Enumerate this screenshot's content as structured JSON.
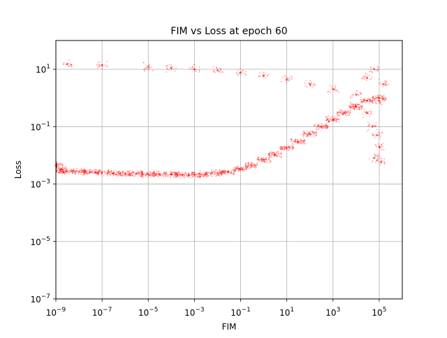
{
  "chart_data": {
    "type": "scatter",
    "title": "FIM vs Loss at epoch 60",
    "xlabel": "FIM",
    "ylabel": "Loss",
    "xscale": "log",
    "yscale": "log",
    "xlim": [
      1e-09,
      1000000.0
    ],
    "ylim": [
      1e-07,
      100
    ],
    "grid": true,
    "marker_color": "#ff0000",
    "x_ticks": [
      {
        "base": "10",
        "exp": "−9",
        "value": 1e-09
      },
      {
        "base": "10",
        "exp": "−7",
        "value": 1e-07
      },
      {
        "base": "10",
        "exp": "−5",
        "value": 1e-05
      },
      {
        "base": "10",
        "exp": "−3",
        "value": 0.001
      },
      {
        "base": "10",
        "exp": "−1",
        "value": 0.1
      },
      {
        "base": "10",
        "exp": "1",
        "value": 10
      },
      {
        "base": "10",
        "exp": "3",
        "value": 1000
      },
      {
        "base": "10",
        "exp": "5",
        "value": 100000
      }
    ],
    "y_ticks": [
      {
        "base": "10",
        "exp": "−7",
        "value": 1e-07
      },
      {
        "base": "10",
        "exp": "−5",
        "value": 1e-05
      },
      {
        "base": "10",
        "exp": "−3",
        "value": 0.001
      },
      {
        "base": "10",
        "exp": "−1",
        "value": 0.1
      },
      {
        "base": "10",
        "exp": "1",
        "value": 10
      }
    ],
    "series": [
      {
        "points": [
          [
            1e-09,
            0.0045
          ],
          [
            1.5e-09,
            0.003
          ],
          [
            3e-09,
            0.0028
          ],
          [
            1e-08,
            0.0027
          ],
          [
            3e-08,
            0.0026
          ],
          [
            1e-07,
            0.0025
          ],
          [
            3e-07,
            0.0024
          ],
          [
            1e-06,
            0.0023
          ],
          [
            3e-06,
            0.0023
          ],
          [
            1e-05,
            0.0022
          ],
          [
            3e-05,
            0.0022
          ],
          [
            0.0001,
            0.0022
          ],
          [
            0.0003,
            0.0021
          ],
          [
            0.001,
            0.0021
          ],
          [
            0.003,
            0.0022
          ],
          [
            0.01,
            0.0024
          ],
          [
            0.03,
            0.0027
          ],
          [
            0.1,
            0.0033
          ],
          [
            0.3,
            0.0045
          ],
          [
            1,
            0.007
          ],
          [
            3,
            0.011
          ],
          [
            10,
            0.018
          ],
          [
            30,
            0.03
          ],
          [
            100,
            0.055
          ],
          [
            300,
            0.1
          ],
          [
            1000,
            0.18
          ],
          [
            3000,
            0.3
          ],
          [
            10000,
            0.5
          ],
          [
            30000,
            0.8
          ],
          [
            100000,
            1.0
          ]
        ]
      },
      {
        "points": [
          [
            3e-09,
            15
          ],
          [
            1e-07,
            14
          ],
          [
            1e-05,
            12
          ],
          [
            0.0001,
            11
          ],
          [
            0.001,
            10
          ],
          [
            0.01,
            9
          ],
          [
            0.1,
            7.5
          ],
          [
            1,
            6
          ],
          [
            10,
            4.5
          ],
          [
            100,
            3
          ],
          [
            1000,
            2
          ],
          [
            10000,
            1.3
          ],
          [
            100000,
            0.8
          ]
        ]
      },
      {
        "points": [
          [
            10000,
            0.5
          ],
          [
            30000,
            0.3
          ],
          [
            50000,
            0.1
          ],
          [
            80000,
            0.05
          ],
          [
            100000,
            0.02
          ],
          [
            120000,
            0.006
          ],
          [
            60000,
            0.008
          ],
          [
            150000,
            3
          ],
          [
            30000,
            5
          ],
          [
            60000,
            10
          ]
        ]
      }
    ]
  }
}
